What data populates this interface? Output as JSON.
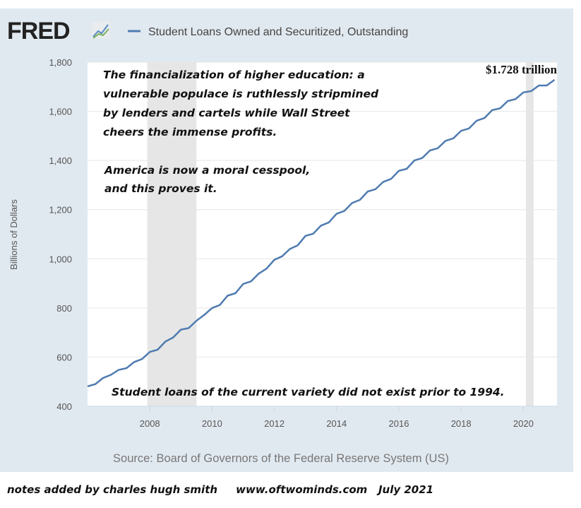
{
  "header": {
    "logo": "FRED",
    "series_title": "Student Loans Owned and Securitized, Outstanding"
  },
  "source": "Source: Board of Governors of the Federal Reserve System (US)",
  "footer": {
    "note": "notes added by charles hugh smith",
    "site": "www.oftwominds.com",
    "date": "July 2021"
  },
  "colors": {
    "panel": "#e1e9f0",
    "line": "#4f7bb0",
    "recession": "#e6e6e6"
  },
  "chart_data": {
    "type": "line",
    "title": "Student Loans Owned and Securitized, Outstanding",
    "ylabel": "Billions of Dollars",
    "ylim": [
      400,
      1800
    ],
    "xlim": [
      2006.0,
      2021.08
    ],
    "yticks": [
      "400",
      "600",
      "800",
      "1,000",
      "1,200",
      "1,400",
      "1,600",
      "1,800"
    ],
    "xticks": [
      "2008",
      "2010",
      "2012",
      "2014",
      "2016",
      "2018",
      "2020"
    ],
    "grid": true,
    "frequency": "quarterly",
    "start": "2006-Q1",
    "values": [
      481,
      490,
      515,
      528,
      548,
      555,
      580,
      592,
      621,
      630,
      663,
      680,
      712,
      718,
      748,
      772,
      800,
      812,
      850,
      860,
      898,
      908,
      940,
      960,
      996,
      1010,
      1040,
      1055,
      1093,
      1102,
      1135,
      1148,
      1183,
      1195,
      1227,
      1240,
      1274,
      1283,
      1313,
      1325,
      1358,
      1366,
      1400,
      1410,
      1441,
      1450,
      1480,
      1490,
      1521,
      1530,
      1562,
      1573,
      1605,
      1612,
      1642,
      1650,
      1677,
      1682,
      1705,
      1705,
      1728
    ],
    "recessions": [
      [
        2007.92,
        2009.5
      ],
      [
        2020.08,
        2020.33
      ]
    ],
    "annotations": {
      "main": [
        "The financialization of higher education: a",
        "vulnerable populace is ruthlessly stripmined",
        "by lenders and cartels while Wall Street",
        "cheers the immense profits."
      ],
      "second": [
        "America is now a moral cesspool,",
        "and this proves it."
      ],
      "bottom": "Student loans of the current variety did not exist prior to 1994.",
      "last_value": "$1.728 trillion"
    }
  }
}
